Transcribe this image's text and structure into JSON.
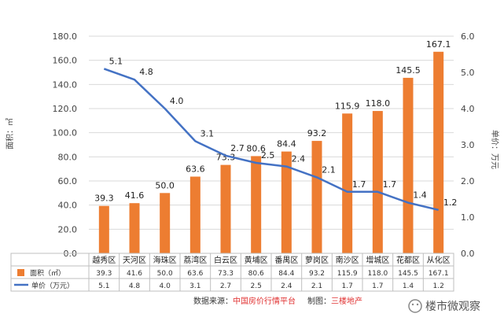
{
  "chart_data": {
    "type": "bar",
    "categories": [
      "越秀区",
      "天河区",
      "海珠区",
      "荔湾区",
      "白云区",
      "黄埔区",
      "番禺区",
      "萝岗区",
      "南沙区",
      "增城区",
      "花都区",
      "从化区"
    ],
    "series": [
      {
        "name": "面积（㎡）",
        "type": "bar",
        "axis": "left",
        "color": "#ed7d31",
        "values": [
          39.3,
          41.6,
          50.0,
          63.6,
          73.3,
          80.6,
          84.4,
          93.2,
          115.9,
          118.0,
          145.5,
          167.1
        ],
        "labels": [
          "39.3",
          "41.6",
          "50.0",
          "63.6",
          "73.3",
          "80.6",
          "84.4",
          "93.2",
          "115.9",
          "118.0",
          "145.5",
          "167.1"
        ]
      },
      {
        "name": "单价（万元）",
        "type": "line",
        "axis": "right",
        "color": "#4472c4",
        "values": [
          5.1,
          4.8,
          4.0,
          3.1,
          2.7,
          2.5,
          2.4,
          2.1,
          1.7,
          1.7,
          1.4,
          1.2
        ],
        "labels": [
          "5.1",
          "4.8",
          "4.0",
          "3.1",
          "2.7",
          "2.5",
          "2.4",
          "2.1",
          "1.7",
          "1.7",
          "1.4",
          "1.2"
        ]
      }
    ],
    "y_left": {
      "label": "面积：㎡",
      "ylim": [
        0,
        180
      ],
      "ticks": [
        "0.0",
        "20.0",
        "40.0",
        "60.0",
        "80.0",
        "100.0",
        "120.0",
        "140.0",
        "160.0",
        "180.0"
      ]
    },
    "y_right": {
      "label": "单价：万元",
      "ylim": [
        0,
        6
      ],
      "ticks": [
        "0.0",
        "1.0",
        "2.0",
        "3.0",
        "4.0",
        "5.0",
        "6.0"
      ]
    },
    "grid": true,
    "legend": "data-table-bottom"
  },
  "footer": {
    "source_prefix": "数据来源：",
    "source_name": "中国房价行情平台",
    "maker_prefix": "制图：",
    "maker_name": "三楼地产"
  },
  "watermark": {
    "text": "楼市微观察"
  }
}
